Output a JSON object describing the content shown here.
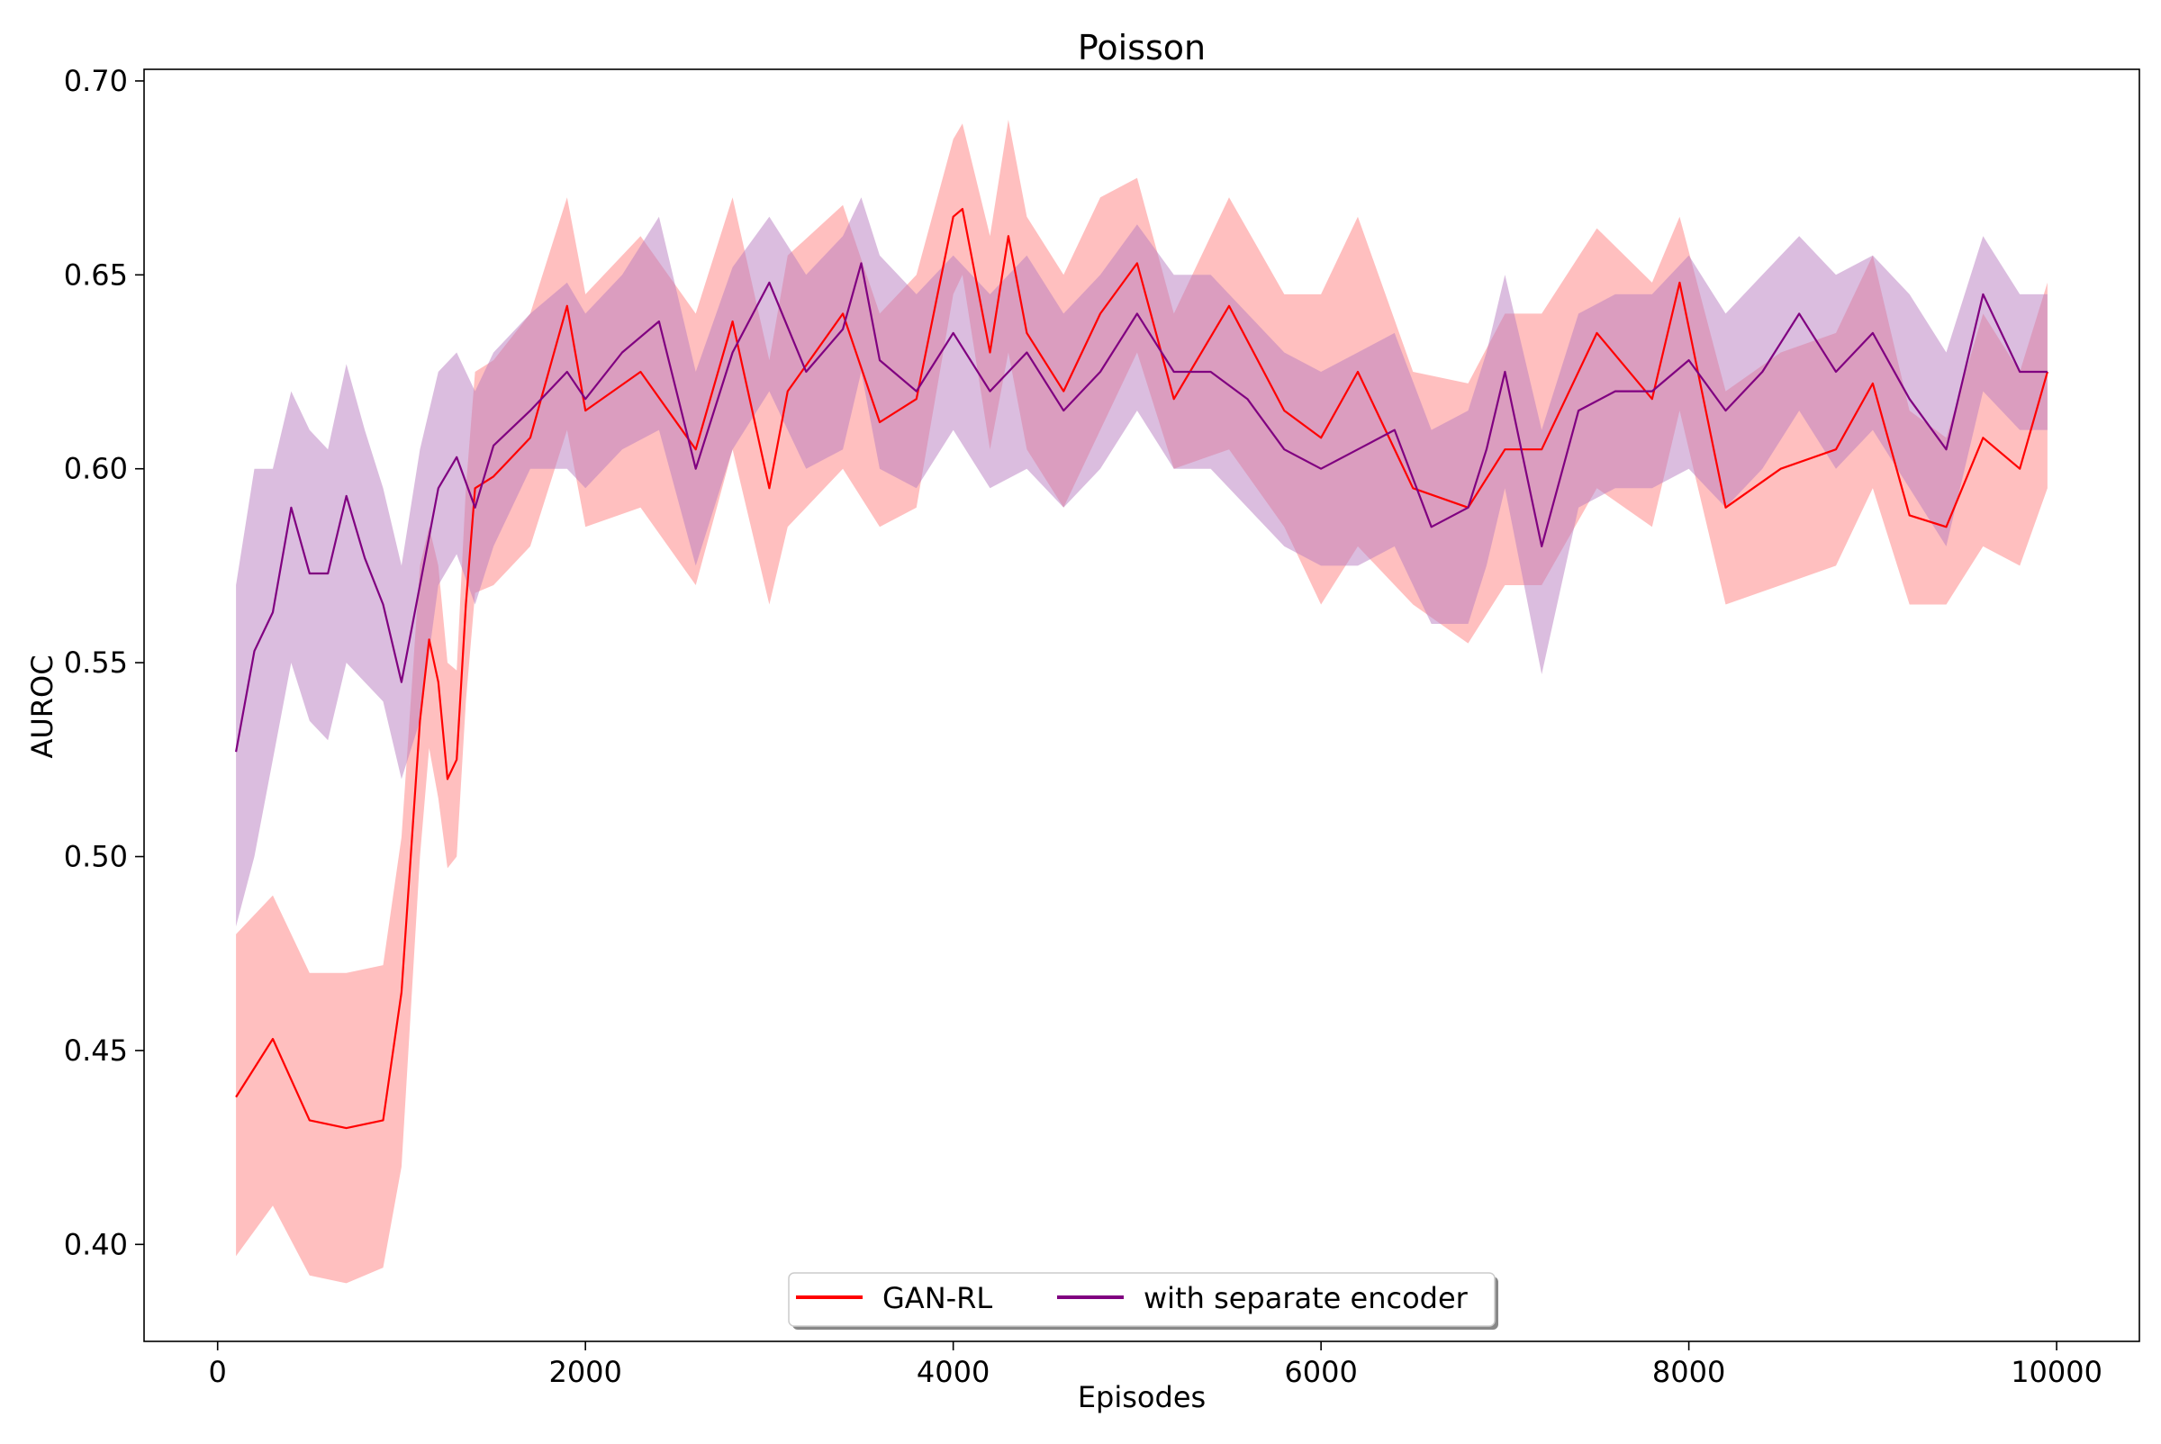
{
  "chart_data": {
    "type": "line",
    "title": "Poisson",
    "xlabel": "Episodes",
    "ylabel": "AUROC",
    "xlim": [
      -400,
      10450
    ],
    "ylim": [
      0.375,
      0.703
    ],
    "xticks": [
      0,
      2000,
      4000,
      6000,
      8000,
      10000
    ],
    "yticks": [
      0.4,
      0.45,
      0.5,
      0.55,
      0.6,
      0.65,
      0.7
    ],
    "xtick_labels": [
      "0",
      "2000",
      "4000",
      "6000",
      "8000",
      "10000"
    ],
    "ytick_labels": [
      "0.40",
      "0.45",
      "0.50",
      "0.55",
      "0.60",
      "0.65",
      "0.70"
    ],
    "legend_position": "bottom-center",
    "grid": false,
    "series": [
      {
        "name": "GAN-RL",
        "color": "#ff0000",
        "band_color": "#ff8080",
        "x": [
          100,
          300,
          500,
          700,
          900,
          1000,
          1100,
          1150,
          1200,
          1250,
          1300,
          1350,
          1400,
          1500,
          1700,
          1900,
          2000,
          2300,
          2600,
          2800,
          3000,
          3100,
          3400,
          3600,
          3800,
          4000,
          4050,
          4200,
          4300,
          4400,
          4600,
          4800,
          5000,
          5200,
          5500,
          5800,
          6000,
          6200,
          6500,
          6800,
          7000,
          7200,
          7500,
          7800,
          7950,
          8200,
          8500,
          8800,
          9000,
          9200,
          9400,
          9600,
          9800,
          9950
        ],
        "mean": [
          0.438,
          0.453,
          0.432,
          0.43,
          0.432,
          0.465,
          0.535,
          0.556,
          0.545,
          0.52,
          0.525,
          0.565,
          0.595,
          0.598,
          0.608,
          0.642,
          0.615,
          0.625,
          0.605,
          0.638,
          0.595,
          0.62,
          0.64,
          0.612,
          0.618,
          0.665,
          0.667,
          0.63,
          0.66,
          0.635,
          0.62,
          0.64,
          0.653,
          0.618,
          0.642,
          0.615,
          0.608,
          0.625,
          0.595,
          0.59,
          0.605,
          0.605,
          0.635,
          0.618,
          0.648,
          0.59,
          0.6,
          0.605,
          0.622,
          0.588,
          0.585,
          0.608,
          0.6,
          0.625
        ],
        "lower": [
          0.397,
          0.41,
          0.392,
          0.39,
          0.394,
          0.42,
          0.5,
          0.528,
          0.515,
          0.497,
          0.5,
          0.54,
          0.568,
          0.57,
          0.58,
          0.61,
          0.585,
          0.59,
          0.57,
          0.605,
          0.565,
          0.585,
          0.6,
          0.585,
          0.59,
          0.645,
          0.65,
          0.605,
          0.63,
          0.605,
          0.59,
          0.61,
          0.63,
          0.6,
          0.605,
          0.585,
          0.565,
          0.58,
          0.565,
          0.555,
          0.57,
          0.57,
          0.595,
          0.585,
          0.615,
          0.565,
          0.57,
          0.575,
          0.595,
          0.565,
          0.565,
          0.58,
          0.575,
          0.595
        ],
        "upper": [
          0.48,
          0.49,
          0.47,
          0.47,
          0.472,
          0.505,
          0.575,
          0.585,
          0.575,
          0.55,
          0.548,
          0.595,
          0.625,
          0.628,
          0.64,
          0.67,
          0.645,
          0.66,
          0.64,
          0.67,
          0.628,
          0.655,
          0.668,
          0.64,
          0.65,
          0.685,
          0.689,
          0.66,
          0.69,
          0.665,
          0.65,
          0.67,
          0.675,
          0.64,
          0.67,
          0.645,
          0.645,
          0.665,
          0.625,
          0.622,
          0.64,
          0.64,
          0.662,
          0.648,
          0.665,
          0.62,
          0.63,
          0.635,
          0.655,
          0.615,
          0.608,
          0.64,
          0.625,
          0.648
        ]
      },
      {
        "name": "with separate encoder",
        "color": "#800080",
        "band_color": "#b77cc0",
        "x": [
          100,
          200,
          300,
          400,
          500,
          600,
          700,
          800,
          900,
          1000,
          1100,
          1200,
          1300,
          1400,
          1500,
          1700,
          1900,
          2000,
          2200,
          2400,
          2600,
          2800,
          3000,
          3200,
          3400,
          3500,
          3600,
          3800,
          4000,
          4200,
          4400,
          4600,
          4800,
          5000,
          5200,
          5400,
          5600,
          5800,
          6000,
          6200,
          6400,
          6600,
          6800,
          6900,
          7000,
          7200,
          7400,
          7600,
          7800,
          8000,
          8200,
          8400,
          8600,
          8800,
          9000,
          9200,
          9400,
          9600,
          9800,
          9950
        ],
        "mean": [
          0.527,
          0.553,
          0.563,
          0.59,
          0.573,
          0.573,
          0.593,
          0.577,
          0.565,
          0.545,
          0.57,
          0.595,
          0.603,
          0.59,
          0.606,
          0.615,
          0.625,
          0.618,
          0.63,
          0.638,
          0.6,
          0.63,
          0.648,
          0.625,
          0.636,
          0.653,
          0.628,
          0.62,
          0.635,
          0.62,
          0.63,
          0.615,
          0.625,
          0.64,
          0.625,
          0.625,
          0.618,
          0.605,
          0.6,
          0.605,
          0.61,
          0.585,
          0.59,
          0.605,
          0.625,
          0.58,
          0.615,
          0.62,
          0.62,
          0.628,
          0.615,
          0.625,
          0.64,
          0.625,
          0.635,
          0.618,
          0.605,
          0.645,
          0.625,
          0.625
        ],
        "lower": [
          0.482,
          0.5,
          0.525,
          0.55,
          0.535,
          0.53,
          0.55,
          0.545,
          0.54,
          0.52,
          0.535,
          0.57,
          0.578,
          0.565,
          0.58,
          0.6,
          0.6,
          0.595,
          0.605,
          0.61,
          0.575,
          0.605,
          0.62,
          0.6,
          0.605,
          0.625,
          0.6,
          0.595,
          0.61,
          0.595,
          0.6,
          0.59,
          0.6,
          0.615,
          0.6,
          0.6,
          0.59,
          0.58,
          0.575,
          0.575,
          0.58,
          0.56,
          0.56,
          0.575,
          0.595,
          0.547,
          0.59,
          0.595,
          0.595,
          0.6,
          0.59,
          0.6,
          0.615,
          0.6,
          0.61,
          0.595,
          0.58,
          0.62,
          0.61,
          0.61
        ],
        "upper": [
          0.57,
          0.6,
          0.6,
          0.62,
          0.61,
          0.605,
          0.627,
          0.61,
          0.595,
          0.575,
          0.605,
          0.625,
          0.63,
          0.62,
          0.63,
          0.64,
          0.648,
          0.64,
          0.65,
          0.665,
          0.625,
          0.652,
          0.665,
          0.65,
          0.66,
          0.67,
          0.655,
          0.645,
          0.655,
          0.645,
          0.655,
          0.64,
          0.65,
          0.663,
          0.65,
          0.65,
          0.64,
          0.63,
          0.625,
          0.63,
          0.635,
          0.61,
          0.615,
          0.63,
          0.65,
          0.61,
          0.64,
          0.645,
          0.645,
          0.655,
          0.64,
          0.65,
          0.66,
          0.65,
          0.655,
          0.645,
          0.63,
          0.66,
          0.645,
          0.645
        ]
      }
    ]
  }
}
